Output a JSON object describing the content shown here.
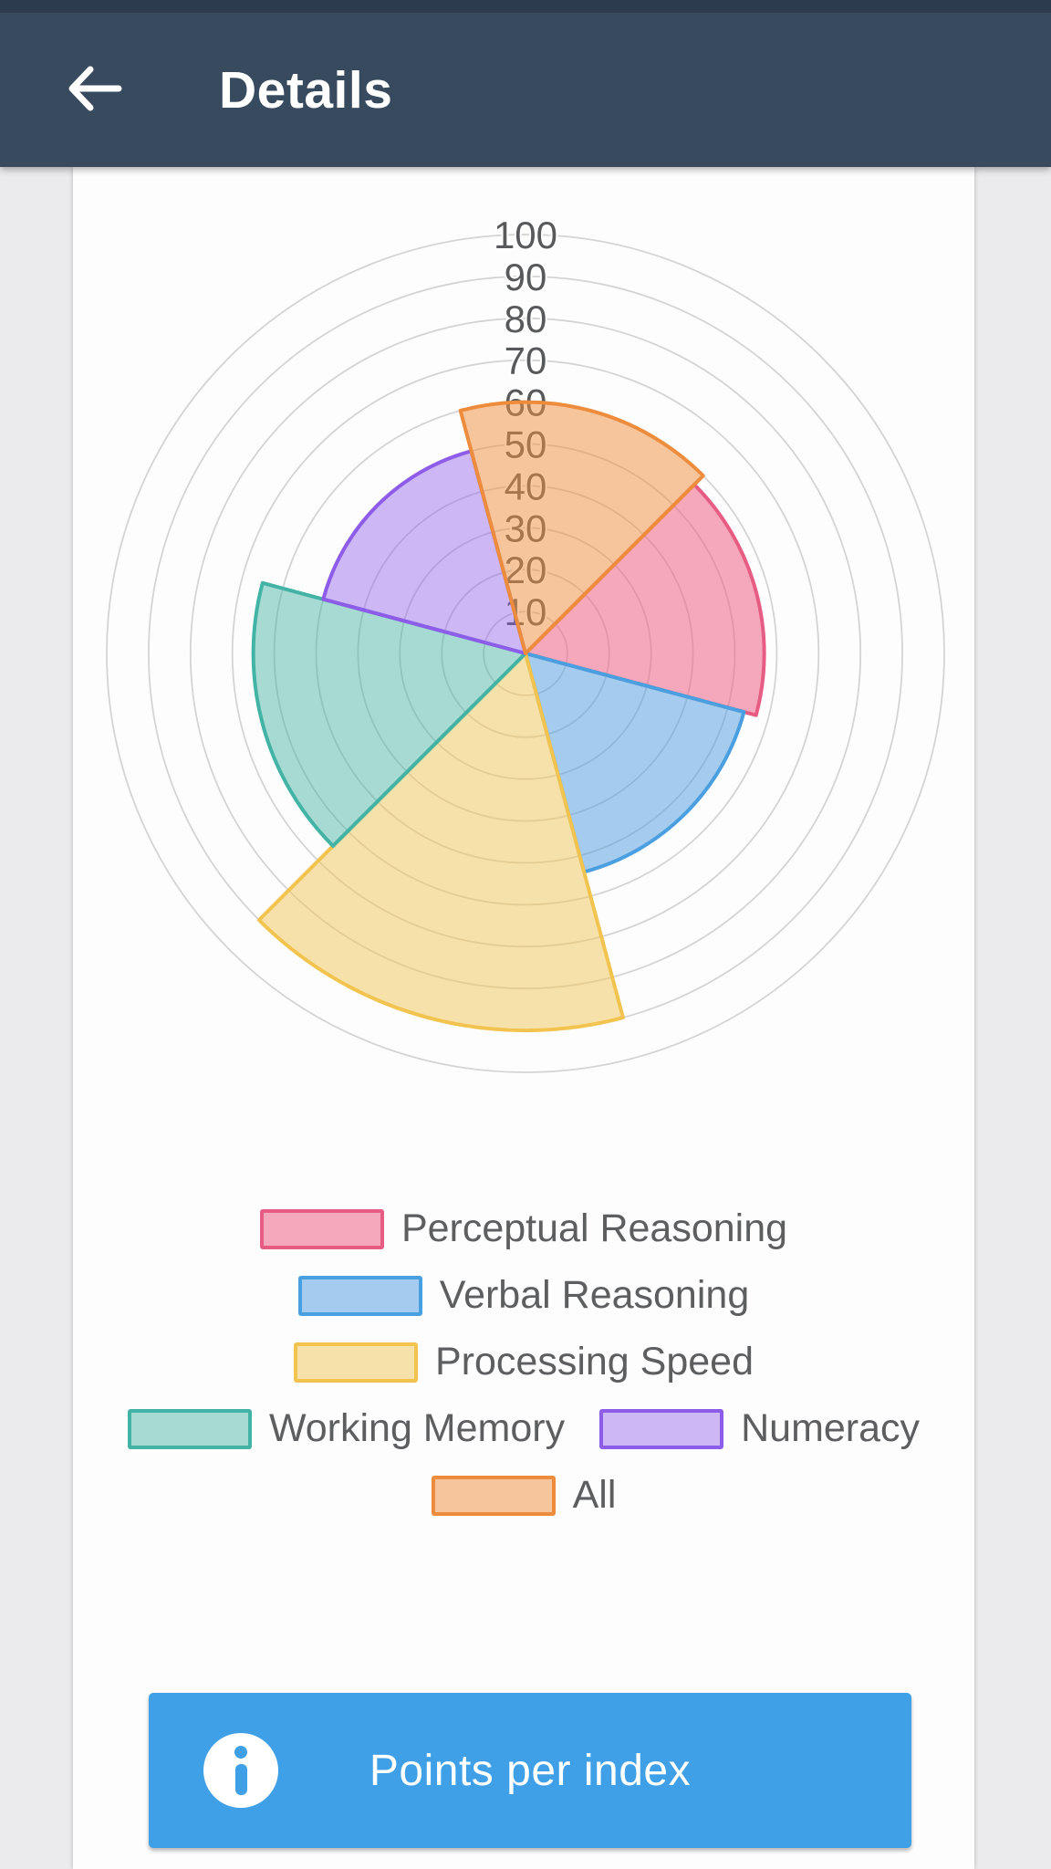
{
  "header": {
    "title": "Details",
    "back_icon": "arrow-left"
  },
  "chart_data": {
    "type": "polar_area",
    "title": "",
    "radial_axis": {
      "min": 0,
      "max": 100,
      "tick_interval": 10,
      "tick_labels": [
        "10",
        "20",
        "30",
        "40",
        "50",
        "60",
        "70",
        "80",
        "90",
        "100"
      ]
    },
    "grid": true,
    "rotation_offset_deg": -15,
    "legend_position": "bottom",
    "categories": [
      "Perceptual Reasoning",
      "Verbal Reasoning",
      "Processing Speed",
      "Working Memory",
      "Numeracy",
      "All"
    ],
    "values": [
      57,
      54,
      90,
      65,
      50,
      60
    ],
    "series": [
      {
        "name": "Perceptual Reasoning",
        "value": 57,
        "start_angle": 45,
        "end_angle": 105,
        "stroke": "#e75c82",
        "fill": "rgba(238,99,133,0.55)"
      },
      {
        "name": "Verbal Reasoning",
        "value": 54,
        "start_angle": 105,
        "end_angle": 165,
        "stroke": "#4a9fe0",
        "fill": "rgba(84,160,222,0.52)"
      },
      {
        "name": "Processing Speed",
        "value": 90,
        "start_angle": 165,
        "end_angle": 225,
        "stroke": "#f2c44f",
        "fill": "rgba(241,198,85,0.50)"
      },
      {
        "name": "Working Memory",
        "value": 65,
        "start_angle": 225,
        "end_angle": 285,
        "stroke": "#43b3a6",
        "fill": "rgba(72,179,166,0.48)"
      },
      {
        "name": "Numeracy",
        "value": 50,
        "start_angle": 285,
        "end_angle": 345,
        "stroke": "#8d5ce8",
        "fill": "rgba(146,97,233,0.45)"
      },
      {
        "name": "All",
        "value": 60,
        "start_angle": 345,
        "end_angle": 405,
        "stroke": "#ee8c3d",
        "fill": "rgba(240,145,66,0.52)"
      }
    ],
    "grid_color": "#d4d4d4",
    "tick_label_color": "#58595b"
  },
  "legend": {
    "items": [
      {
        "label": "Perceptual Reasoning",
        "stroke": "#e75c82",
        "fill": "rgba(238,99,133,0.55)"
      },
      {
        "label": "Verbal Reasoning",
        "stroke": "#4a9fe0",
        "fill": "rgba(84,160,222,0.52)"
      },
      {
        "label": "Processing Speed",
        "stroke": "#f2c44f",
        "fill": "rgba(241,198,85,0.50)"
      },
      {
        "label": "Working Memory",
        "stroke": "#43b3a6",
        "fill": "rgba(72,179,166,0.48)"
      },
      {
        "label": "Numeracy",
        "stroke": "#8d5ce8",
        "fill": "rgba(146,97,233,0.45)"
      },
      {
        "label": "All",
        "stroke": "#ee8c3d",
        "fill": "rgba(240,145,66,0.52)"
      }
    ]
  },
  "button": {
    "label": "Points per index",
    "icon": "info",
    "color": "#3fa0e8"
  }
}
